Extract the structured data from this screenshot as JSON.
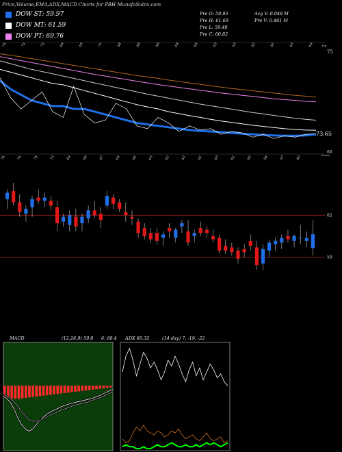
{
  "header": {
    "title": "Price,Volume,EMA,ADX,MACD Charts for PBH MunafaSutra.com"
  },
  "legend": [
    {
      "label": "DOW ST: 59.97",
      "color": "#1e6fe8"
    },
    {
      "label": "DOW MT: 61.59",
      "color": "#ffffff"
    },
    {
      "label": "DOW PT: 69.76",
      "color": "#ee82ee"
    }
  ],
  "stats": {
    "open": "Pre   O: 59.95",
    "high": "Pre   H: 61.69",
    "low": "Pre   L: 59.48",
    "close": "Pre   C: 60.82",
    "avg_volume": "Avg V: 0.048 M",
    "prev_volume": "Pre   V: 0.481 M"
  },
  "chart_data": [
    {
      "type": "line",
      "name": "ema-panel",
      "yticks": [
        "75",
        "73.65",
        "66"
      ],
      "right_label": "Top",
      "date_labels": [
        "75",
        "75",
        "73",
        "69",
        "69",
        "71",
        "68",
        "68",
        "69",
        "69",
        "65",
        "63",
        "63",
        "62",
        "61",
        "63",
        "60"
      ],
      "series": [
        {
          "color": "#1e6fe8",
          "values": [
            75.6,
            75.3,
            75.1,
            74.9,
            74.8,
            74.7,
            74.7,
            74.6,
            74.6,
            74.5,
            74.4,
            74.3,
            74.2,
            74.1,
            74.05,
            74.0,
            73.95,
            73.9,
            73.85,
            73.82,
            73.8,
            73.78,
            73.75,
            73.72,
            73.7,
            73.68,
            73.66,
            73.65,
            73.65,
            73.66,
            73.7
          ]
        },
        {
          "color": "#ffffff",
          "values": [
            76.0,
            75.9,
            75.8,
            75.7,
            75.6,
            75.5,
            75.45,
            75.35,
            75.25,
            75.15,
            75.05,
            74.95,
            74.85,
            74.75,
            74.67,
            74.6,
            74.5,
            74.43,
            74.36,
            74.3,
            74.23,
            74.17,
            74.12,
            74.07,
            74.02,
            73.98,
            73.94,
            73.9,
            73.87,
            73.85,
            73.84
          ]
        },
        {
          "color": "#cccccc",
          "values": [
            76.3,
            76.2,
            76.1,
            76.0,
            75.92,
            75.84,
            75.76,
            75.68,
            75.6,
            75.52,
            75.44,
            75.36,
            75.28,
            75.2,
            75.12,
            75.05,
            74.98,
            74.91,
            74.84,
            74.77,
            74.71,
            74.65,
            74.59,
            74.53,
            74.47,
            74.42,
            74.37,
            74.32,
            74.27,
            74.23,
            74.2
          ]
        },
        {
          "color": "#ee82ee",
          "values": [
            76.45,
            76.38,
            76.31,
            76.24,
            76.17,
            76.1,
            76.03,
            75.96,
            75.89,
            75.82,
            75.76,
            75.7,
            75.64,
            75.58,
            75.52,
            75.46,
            75.41,
            75.36,
            75.31,
            75.26,
            75.21,
            75.16,
            75.12,
            75.08,
            75.04,
            75.0,
            74.96,
            74.93,
            74.9,
            74.87,
            74.85
          ]
        },
        {
          "color": "#b5651d",
          "values": [
            76.55,
            76.5,
            76.44,
            76.38,
            76.32,
            76.26,
            76.2,
            76.14,
            76.08,
            76.02,
            75.96,
            75.9,
            75.84,
            75.78,
            75.73,
            75.68,
            75.62,
            75.57,
            75.52,
            75.47,
            75.42,
            75.37,
            75.32,
            75.28,
            75.24,
            75.2,
            75.16,
            75.12,
            75.08,
            75.05,
            75.02
          ]
        }
      ],
      "price_path": [
        75.7,
        75.0,
        74.6,
        74.9,
        75.2,
        74.5,
        74.3,
        75.4,
        74.4,
        74.1,
        74.2,
        74.8,
        74.6,
        74.0,
        73.9,
        74.3,
        74.1,
        73.8,
        74.0,
        73.85,
        73.9,
        73.7,
        73.8,
        73.75,
        73.6,
        73.7,
        73.55,
        73.65,
        73.6,
        73.7,
        73.72
      ],
      "ylim": [
        73.0,
        77.0
      ]
    },
    {
      "type": "candlestick",
      "name": "price-panel",
      "yticks": [
        "62",
        "59"
      ],
      "left_label": "66",
      "right_label": "Lower",
      "date_labels": [
        "75",
        "76",
        "75",
        "73",
        "69",
        "69",
        "67",
        "65",
        "64",
        "63",
        "62",
        "63",
        "61",
        "63",
        "62",
        "60",
        "59",
        "57",
        "60"
      ],
      "candles": [
        {
          "o": 63.0,
          "h": 63.6,
          "l": 62.4,
          "c": 63.4
        },
        {
          "o": 63.5,
          "h": 64.0,
          "l": 62.6,
          "c": 62.8
        },
        {
          "o": 62.8,
          "h": 63.3,
          "l": 61.9,
          "c": 62.2
        },
        {
          "o": 62.1,
          "h": 62.6,
          "l": 61.6,
          "c": 62.4
        },
        {
          "o": 62.5,
          "h": 63.2,
          "l": 61.9,
          "c": 63.0
        },
        {
          "o": 63.1,
          "h": 63.6,
          "l": 62.7,
          "c": 62.9
        },
        {
          "o": 62.9,
          "h": 63.4,
          "l": 62.5,
          "c": 63.1
        },
        {
          "o": 62.9,
          "h": 63.2,
          "l": 62.3,
          "c": 62.6
        },
        {
          "o": 62.5,
          "h": 62.9,
          "l": 61.0,
          "c": 61.5
        },
        {
          "o": 61.6,
          "h": 62.1,
          "l": 61.3,
          "c": 61.9
        },
        {
          "o": 61.4,
          "h": 62.3,
          "l": 61.0,
          "c": 62.0
        },
        {
          "o": 61.9,
          "h": 62.4,
          "l": 61.0,
          "c": 61.3
        },
        {
          "o": 61.5,
          "h": 62.1,
          "l": 61.0,
          "c": 61.9
        },
        {
          "o": 61.8,
          "h": 62.6,
          "l": 61.5,
          "c": 62.3
        },
        {
          "o": 62.3,
          "h": 62.9,
          "l": 61.8,
          "c": 62.0
        },
        {
          "o": 62.1,
          "h": 62.5,
          "l": 61.2,
          "c": 61.7
        },
        {
          "o": 62.6,
          "h": 63.5,
          "l": 62.4,
          "c": 63.2
        },
        {
          "o": 63.1,
          "h": 63.3,
          "l": 62.4,
          "c": 62.7
        },
        {
          "o": 62.8,
          "h": 63.0,
          "l": 62.2,
          "c": 62.4
        },
        {
          "o": 62.2,
          "h": 62.8,
          "l": 61.6,
          "c": 62.0
        },
        {
          "o": 61.9,
          "h": 62.3,
          "l": 61.4,
          "c": 61.8
        },
        {
          "o": 61.6,
          "h": 61.8,
          "l": 60.6,
          "c": 60.9
        },
        {
          "o": 61.2,
          "h": 61.5,
          "l": 60.5,
          "c": 60.7
        },
        {
          "o": 60.9,
          "h": 61.2,
          "l": 60.3,
          "c": 60.5
        },
        {
          "o": 60.9,
          "h": 61.2,
          "l": 60.2,
          "c": 60.4
        },
        {
          "o": 60.6,
          "h": 61.0,
          "l": 60.1,
          "c": 60.8
        },
        {
          "o": 61.2,
          "h": 61.5,
          "l": 60.6,
          "c": 61.0
        },
        {
          "o": 60.6,
          "h": 61.2,
          "l": 60.3,
          "c": 61.1
        },
        {
          "o": 61.3,
          "h": 61.7,
          "l": 60.9,
          "c": 61.5
        },
        {
          "o": 61.0,
          "h": 61.7,
          "l": 60.1,
          "c": 60.3
        },
        {
          "o": 60.7,
          "h": 61.1,
          "l": 60.3,
          "c": 60.9
        },
        {
          "o": 61.2,
          "h": 61.6,
          "l": 60.7,
          "c": 60.9
        },
        {
          "o": 61.1,
          "h": 61.3,
          "l": 60.6,
          "c": 60.9
        },
        {
          "o": 60.7,
          "h": 61.1,
          "l": 60.3,
          "c": 60.5
        },
        {
          "o": 60.6,
          "h": 60.8,
          "l": 59.6,
          "c": 59.8
        },
        {
          "o": 60.1,
          "h": 60.5,
          "l": 59.6,
          "c": 59.8
        },
        {
          "o": 60.0,
          "h": 60.3,
          "l": 59.5,
          "c": 59.7
        },
        {
          "o": 59.8,
          "h": 60.0,
          "l": 59.0,
          "c": 59.3
        },
        {
          "o": 59.9,
          "h": 60.2,
          "l": 59.4,
          "c": 59.7
        },
        {
          "o": 60.4,
          "h": 60.8,
          "l": 59.8,
          "c": 60.1
        },
        {
          "o": 60.0,
          "h": 60.4,
          "l": 58.6,
          "c": 58.9
        },
        {
          "o": 59.0,
          "h": 60.2,
          "l": 58.6,
          "c": 59.9
        },
        {
          "o": 59.8,
          "h": 60.5,
          "l": 59.4,
          "c": 60.3
        },
        {
          "o": 60.2,
          "h": 60.6,
          "l": 59.8,
          "c": 60.4
        },
        {
          "o": 60.3,
          "h": 60.8,
          "l": 59.9,
          "c": 60.6
        },
        {
          "o": 60.7,
          "h": 61.1,
          "l": 60.3,
          "c": 60.5
        },
        {
          "o": 60.4,
          "h": 60.8,
          "l": 60.0,
          "c": 60.7
        },
        {
          "o": 60.6,
          "h": 61.4,
          "l": 60.2,
          "c": 60.6
        },
        {
          "o": 60.4,
          "h": 61.0,
          "l": 60.0,
          "c": 60.6
        },
        {
          "o": 59.95,
          "h": 61.69,
          "l": 59.48,
          "c": 60.82
        }
      ],
      "ylim": [
        57.5,
        65.5
      ]
    },
    {
      "type": "line",
      "name": "macd-panel",
      "title": "MACD",
      "params": "(12,26,9) 59.8",
      "extra": "6, 60.4",
      "series": [
        {
          "color": "#ffffff",
          "values": [
            -0.25,
            -0.3,
            -0.4,
            -0.55,
            -0.75,
            -0.9,
            -1.0,
            -1.05,
            -1.0,
            -0.9,
            -0.8,
            -0.72,
            -0.65,
            -0.6,
            -0.56,
            -0.52,
            -0.48,
            -0.45,
            -0.42,
            -0.4,
            -0.38,
            -0.36,
            -0.34,
            -0.32,
            -0.3,
            -0.27,
            -0.24,
            -0.2,
            -0.16,
            -0.12,
            -0.08
          ]
        },
        {
          "color": "#aaaaaa",
          "values": [
            -0.2,
            -0.24,
            -0.3,
            -0.38,
            -0.48,
            -0.6,
            -0.7,
            -0.78,
            -0.82,
            -0.82,
            -0.8,
            -0.76,
            -0.72,
            -0.68,
            -0.64,
            -0.6,
            -0.56,
            -0.53,
            -0.5,
            -0.47,
            -0.44,
            -0.42,
            -0.4,
            -0.38,
            -0.35,
            -0.32,
            -0.29,
            -0.26,
            -0.22,
            -0.18,
            -0.14
          ]
        }
      ],
      "histogram": [
        -0.25,
        -0.28,
        -0.3,
        -0.3,
        -0.3,
        -0.29,
        -0.28,
        -0.27,
        -0.26,
        -0.25,
        -0.24,
        -0.23,
        -0.22,
        -0.21,
        -0.2,
        -0.19,
        -0.18,
        -0.17,
        -0.16,
        -0.15,
        -0.14,
        -0.13,
        -0.12,
        -0.11,
        -0.1,
        -0.09,
        -0.08,
        -0.07,
        -0.06,
        -0.05,
        -0.04
      ],
      "ylim": [
        -1.5,
        1.0
      ]
    },
    {
      "type": "line",
      "name": "adx-panel",
      "title": "ADX",
      "extra": "60.32",
      "params": "(14 day) 7, -19, -22",
      "series": [
        {
          "color": "#ffffff",
          "values": [
            40,
            48,
            52,
            46,
            38,
            44,
            50,
            47,
            42,
            45,
            41,
            36,
            40,
            46,
            43,
            48,
            44,
            39,
            35,
            41,
            45,
            38,
            42,
            36,
            40,
            44,
            41,
            37,
            39,
            35,
            33
          ]
        },
        {
          "color": "#b5651d",
          "values": [
            6,
            4,
            5,
            9,
            12,
            10,
            13,
            10,
            9,
            8,
            10,
            9,
            7,
            8,
            10,
            9,
            11,
            8,
            6,
            7,
            8,
            6,
            5,
            7,
            9,
            6,
            5,
            6,
            7,
            4,
            5
          ]
        },
        {
          "color": "#00ff00",
          "values": [
            2,
            3,
            2,
            2,
            1,
            1,
            2,
            1,
            1,
            2,
            3,
            2,
            2,
            3,
            4,
            3,
            2,
            2,
            3,
            2,
            2,
            3,
            2,
            3,
            4,
            3,
            4,
            3,
            2,
            3,
            4
          ]
        }
      ],
      "ylim": [
        0,
        55
      ]
    }
  ]
}
